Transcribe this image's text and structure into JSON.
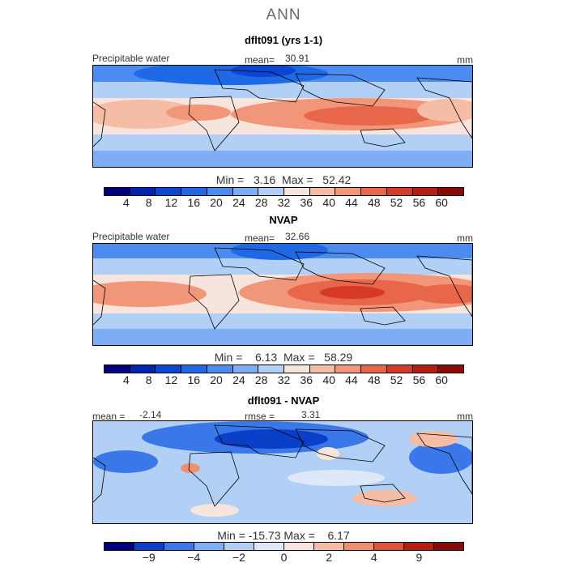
{
  "main_title": "ANN",
  "colors": {
    "scale13": [
      "#00007f",
      "#0022b4",
      "#0a46d2",
      "#1f69e6",
      "#4c8cf0",
      "#7fadf5",
      "#b2cff5",
      "#f7e4dc",
      "#f5bda6",
      "#f29679",
      "#e8674b",
      "#d53a26",
      "#b51d12",
      "#8a0a05"
    ],
    "scale_diff": [
      "#00007f",
      "#0a3fc8",
      "#3a78ea",
      "#7fadf5",
      "#b2cff5",
      "#dde8f8",
      "#f7e4dc",
      "#f5bda6",
      "#ef8f6e",
      "#dd5536",
      "#b81c10",
      "#8a0a05"
    ],
    "land_line": "#000000"
  },
  "panels": [
    {
      "title": "dflt091 (yrs 1-1)",
      "left_label": "Precipitable water",
      "mean_label": "mean=",
      "mean_value": "30.91",
      "units": "mm",
      "min_label": "Min =",
      "min_value": "3.16",
      "max_label": "Max =",
      "max_value": "52.42",
      "colorbar_ticks": [
        "4",
        "8",
        "12",
        "16",
        "20",
        "24",
        "28",
        "32",
        "36",
        "40",
        "44",
        "48",
        "52",
        "56",
        "60"
      ]
    },
    {
      "title": "NVAP",
      "left_label": "Precipitable water",
      "mean_label": "mean=",
      "mean_value": "32.66",
      "units": "mm",
      "min_label": "Min =",
      "min_value": "6.13",
      "max_label": "Max =",
      "max_value": "58.29",
      "colorbar_ticks": [
        "4",
        "8",
        "12",
        "16",
        "20",
        "24",
        "28",
        "32",
        "36",
        "40",
        "44",
        "48",
        "52",
        "56",
        "60"
      ]
    },
    {
      "title": "dflt091 - NVAP",
      "mean_label": "mean =",
      "mean_value": "-2.14",
      "rmse_label": "rmse =",
      "rmse_value": "3.31",
      "units": "mm",
      "min_label": "Min =",
      "min_value": "-15.73",
      "max_label": "Max =",
      "max_value": "6.17",
      "colorbar_ticks": [
        "-9",
        "-4",
        "-2",
        "0",
        "2",
        "4",
        "9"
      ]
    }
  ]
}
